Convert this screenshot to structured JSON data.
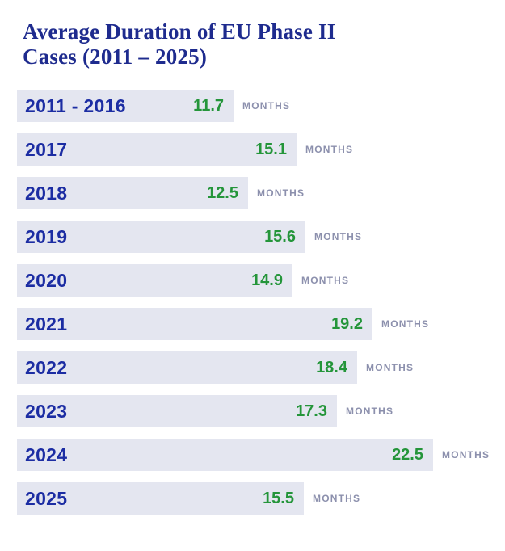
{
  "header": {
    "title_lines": [
      "Average Duration of EU Phase II",
      "Cases (2011 – 2025)"
    ]
  },
  "chart_data": {
    "type": "bar",
    "orientation": "horizontal",
    "title": "Average Duration of EU Phase II Cases (2011 – 2025)",
    "categories": [
      "2011 - 2016",
      "2017",
      "2018",
      "2019",
      "2020",
      "2021",
      "2022",
      "2023",
      "2024",
      "2025"
    ],
    "values": [
      11.7,
      15.1,
      12.5,
      15.6,
      14.9,
      19.2,
      18.4,
      17.3,
      22.5,
      15.5
    ],
    "unit_label": "MONTHS",
    "value_decimals": 1,
    "xlim": [
      0,
      23
    ],
    "grid": false,
    "legend": false,
    "colors": {
      "title": "#1e2b8e",
      "category": "#1c2da3",
      "value": "#24953a",
      "unit": "#8c90ad",
      "bar_background": "#e4e6f0",
      "page_background": "#ffffff"
    }
  }
}
